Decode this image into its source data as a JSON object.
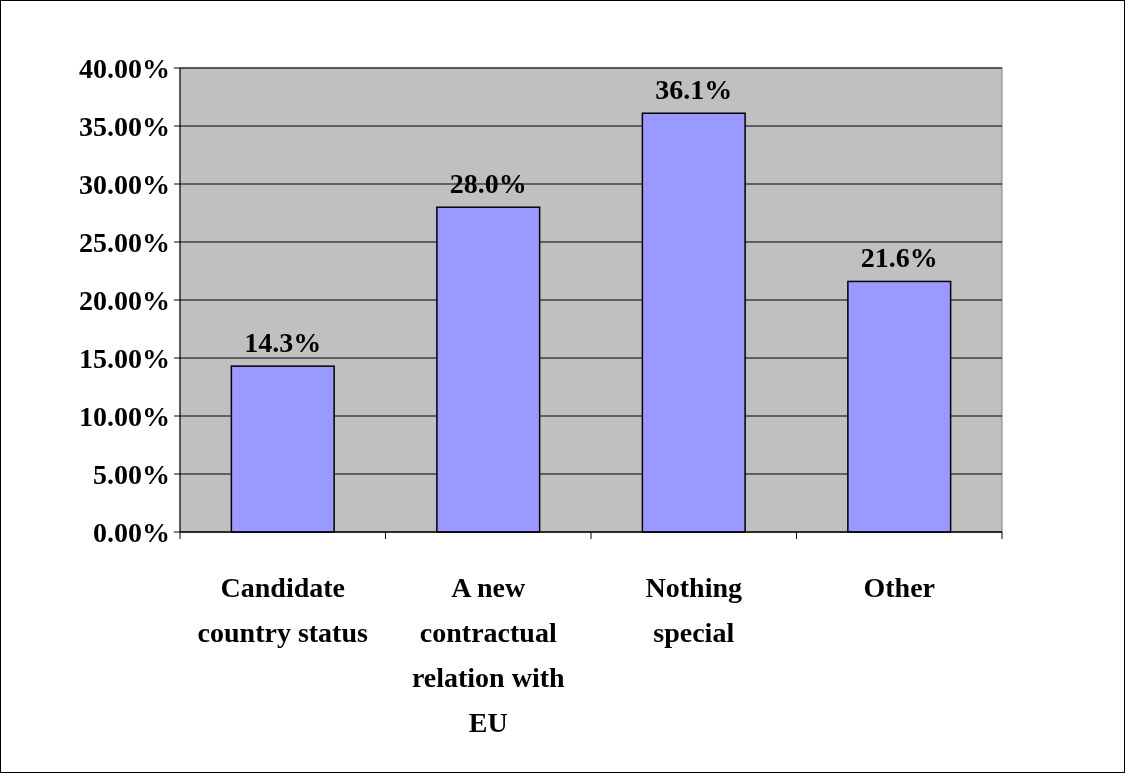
{
  "chart_data": {
    "type": "bar",
    "categories": [
      "Candidate country status",
      "A new contractual relation with EU",
      "Nothing special",
      "Other"
    ],
    "values": [
      14.3,
      28.0,
      36.1,
      21.6
    ],
    "value_labels": [
      "14.3%",
      "28.0%",
      "36.1%",
      "21.6%"
    ],
    "color": "#9999ff",
    "ylim": [
      0,
      40
    ],
    "yticks": [
      {
        "value": 0,
        "label": "0.00%"
      },
      {
        "value": 5,
        "label": "5.00%"
      },
      {
        "value": 10,
        "label": "10.00%"
      },
      {
        "value": 15,
        "label": "15.00%"
      },
      {
        "value": 20,
        "label": "20.00%"
      },
      {
        "value": 25,
        "label": "25.00%"
      },
      {
        "value": 30,
        "label": "30.00%"
      },
      {
        "value": 35,
        "label": "35.00%"
      },
      {
        "value": 40,
        "label": "40.00%"
      }
    ],
    "grid": "y"
  }
}
